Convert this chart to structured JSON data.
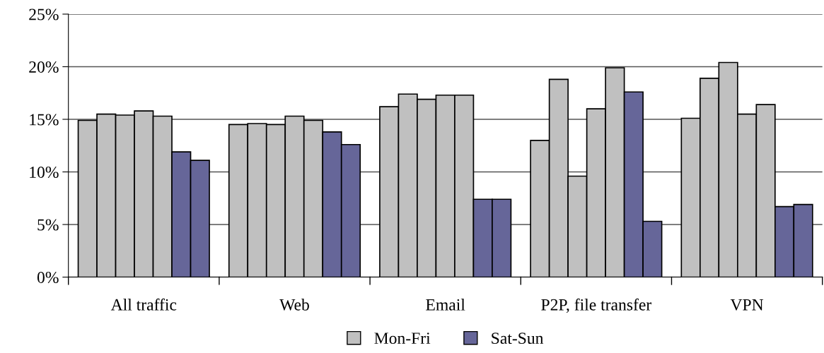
{
  "chart_data": {
    "type": "bar",
    "categories": [
      "All traffic",
      "Web",
      "Email",
      "P2P, file transfer",
      "VPN"
    ],
    "series": [
      {
        "name": "Mon-Fri",
        "color": "#c0c0c0",
        "values": [
          14.9,
          14.5,
          16.2,
          13.0,
          15.1
        ]
      },
      {
        "color": "#c0c0c0",
        "values": [
          15.5,
          14.6,
          17.4,
          18.8,
          18.9
        ]
      },
      {
        "color": "#c0c0c0",
        "values": [
          15.4,
          14.5,
          16.9,
          9.6,
          20.4
        ]
      },
      {
        "color": "#c0c0c0",
        "values": [
          15.8,
          15.3,
          17.3,
          16.0,
          15.5
        ]
      },
      {
        "color": "#c0c0c0",
        "values": [
          15.3,
          14.9,
          17.3,
          19.9,
          16.4
        ]
      },
      {
        "name": "Sat-Sun",
        "color": "#666699",
        "values": [
          11.9,
          13.8,
          7.4,
          17.6,
          6.7
        ]
      },
      {
        "color": "#666699",
        "values": [
          11.1,
          12.6,
          7.4,
          5.3,
          6.9
        ]
      }
    ],
    "ylim": [
      0,
      25
    ],
    "yticks": [
      {
        "value": 0,
        "label": "0%"
      },
      {
        "value": 5,
        "label": "5%"
      },
      {
        "value": 10,
        "label": "10%"
      },
      {
        "value": 15,
        "label": "15%"
      },
      {
        "value": 20,
        "label": "20%"
      },
      {
        "value": 25,
        "label": "25%"
      }
    ],
    "grid": "y",
    "legend": "bottom"
  }
}
